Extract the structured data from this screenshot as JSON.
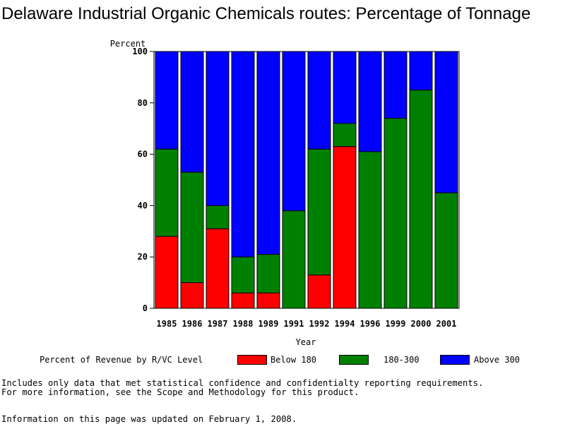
{
  "title": "Delaware Industrial Organic Chemicals routes: Percentage of Tonnage",
  "chart_data": {
    "type": "bar",
    "stacked": true,
    "title": "Delaware Industrial Organic Chemicals routes: Percentage of Tonnage",
    "xlabel": "Year",
    "ylabel": "Percent",
    "ylim": [
      0,
      100
    ],
    "yticks": [
      "0",
      "20",
      "40",
      "60",
      "80",
      "100"
    ],
    "categories": [
      "1985",
      "1986",
      "1987",
      "1988",
      "1989",
      "1991",
      "1992",
      "1994",
      "1996",
      "1999",
      "2000",
      "2001"
    ],
    "series": [
      {
        "name": "Below 180",
        "color": "#ff0000",
        "values": [
          28,
          10,
          31,
          6,
          6,
          0,
          13,
          63,
          0,
          0,
          0,
          0
        ]
      },
      {
        "name": "180-300",
        "color": "#008000",
        "values": [
          34,
          43,
          9,
          14,
          15,
          38,
          49,
          9,
          61,
          74,
          85,
          45
        ]
      },
      {
        "name": "Above 300",
        "color": "#0000ff",
        "values": [
          38,
          47,
          60,
          80,
          79,
          62,
          38,
          28,
          39,
          26,
          15,
          55
        ]
      }
    ],
    "legend_position": "bottom",
    "legend_title": "Percent of Revenue by R/VC Level"
  },
  "notes": {
    "line1": "Includes only data that met statistical confidence and confidentialty reporting requirements.",
    "line2": "For more information, see the Scope and Methodology for this product.",
    "line3": "Information on this page was updated on February 1, 2008."
  }
}
